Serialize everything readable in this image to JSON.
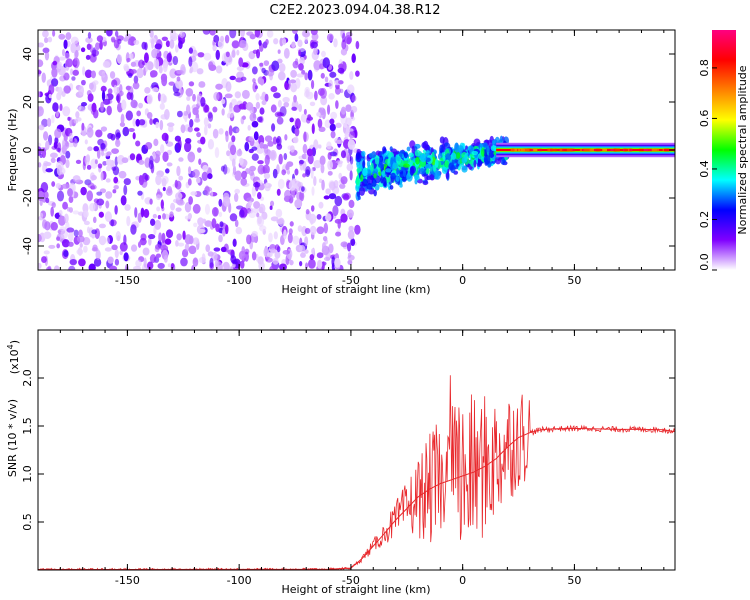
{
  "figure": {
    "title": "C2E2.2023.094.04.38.R12"
  },
  "chart_data": [
    {
      "type": "heatmap",
      "title": "C2E2.2023.094.04.38.R12",
      "xlabel": "Height of straight line (km)",
      "ylabel": "Frequency (Hz)",
      "xlim": [
        -190,
        95
      ],
      "ylim": [
        -50,
        50
      ],
      "x_ticks": [
        -150,
        -100,
        -50,
        0,
        50
      ],
      "y_ticks": [
        -40,
        -20,
        0,
        20,
        40
      ],
      "grid": false,
      "colorbar": {
        "label": "Normalized spectral amplitude",
        "range": [
          0.0,
          0.95
        ],
        "ticks": [
          0.0,
          0.2,
          0.4,
          0.6,
          0.8
        ],
        "colormap": [
          "#ffffff",
          "#8000ff",
          "#0000ff",
          "#00ffff",
          "#00ff00",
          "#ffff00",
          "#ff8000",
          "#ff0000",
          "#ff0080"
        ]
      },
      "regions": [
        {
          "x_range": [
            -190,
            -47
          ],
          "description_level": 0.1,
          "spread_hz": [
            -50,
            50
          ]
        },
        {
          "x_range": [
            -47,
            20
          ],
          "description_level": 0.35,
          "spread_hz": [
            -20,
            10
          ]
        },
        {
          "x_range": [
            20,
            95
          ],
          "description_level": 0.9,
          "spread_hz": [
            -3,
            3
          ]
        }
      ]
    },
    {
      "type": "line",
      "xlabel": "Height of straight line (km)",
      "ylabel": "SNR (10 * v/v)",
      "y_multiplier_label": "(x10",
      "y_multiplier_exp": "4",
      "y_multiplier_close": ")",
      "xlim": [
        -190,
        95
      ],
      "ylim": [
        0,
        25000
      ],
      "x_ticks": [
        -150,
        -100,
        -50,
        0,
        50
      ],
      "y_ticks": [
        5000,
        10000,
        15000,
        20000
      ],
      "y_tick_labels": [
        "0.5",
        "1.0",
        "1.5",
        "2.0"
      ],
      "series": [
        {
          "color": "#e8282c",
          "x": [
            -190,
            -150,
            -100,
            -60,
            -50,
            -45,
            -40,
            -35,
            -30,
            -25,
            -20,
            -15,
            -10,
            -5,
            0,
            5,
            10,
            15,
            20,
            25,
            30,
            35,
            40,
            50,
            60,
            70,
            80,
            90,
            95
          ],
          "values": [
            50,
            50,
            60,
            80,
            200,
            1200,
            2500,
            3800,
            5200,
            6400,
            7600,
            8400,
            9000,
            9400,
            9800,
            10200,
            10800,
            11600,
            12800,
            13800,
            14300,
            14600,
            14700,
            14750,
            14700,
            14650,
            14650,
            14600,
            14400
          ]
        }
      ]
    }
  ]
}
